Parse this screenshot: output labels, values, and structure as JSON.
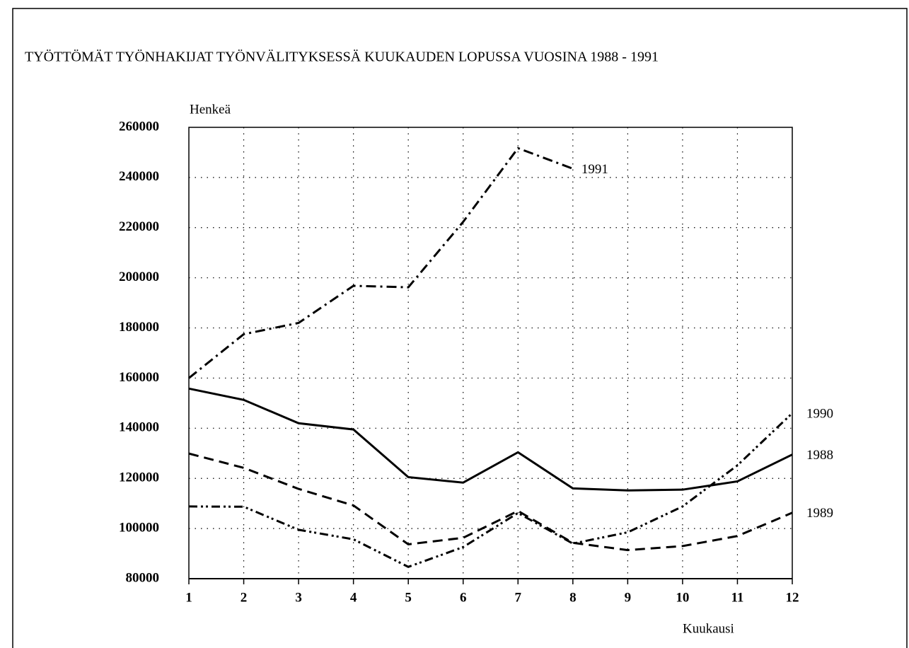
{
  "chart_data": {
    "type": "line",
    "title": "TYÖTTÖMÄT TYÖNHAKIJAT TYÖNVÄLITYKSESSÄ KUUKAUDEN LOPUSSA VUOSINA 1988 - 1991",
    "y_label": "Henkeä",
    "x_label": "Kuukausi",
    "x": [
      1,
      2,
      3,
      4,
      5,
      6,
      7,
      8,
      9,
      10,
      11,
      12
    ],
    "xlim": [
      1,
      12
    ],
    "xticks": [
      1,
      2,
      3,
      4,
      5,
      6,
      7,
      8,
      9,
      10,
      11,
      12
    ],
    "ylim": [
      80000,
      260000
    ],
    "yticks": [
      80000,
      100000,
      120000,
      140000,
      160000,
      180000,
      200000,
      220000,
      240000,
      260000
    ],
    "grid": true,
    "series": [
      {
        "name": "1988",
        "color": "#000000",
        "dash": "solid",
        "values": [
          155800,
          151300,
          142000,
          139500,
          120500,
          118300,
          130400,
          116000,
          115200,
          115500,
          118800,
          129500
        ]
      },
      {
        "name": "1989",
        "color": "#000000",
        "dash": "dashed",
        "values": [
          129900,
          124200,
          115800,
          109200,
          93700,
          96300,
          107000,
          94300,
          91400,
          93000,
          97000,
          106300
        ]
      },
      {
        "name": "1990",
        "color": "#000000",
        "dash": "dashdotdot",
        "values": [
          108800,
          108700,
          99500,
          95700,
          84700,
          92600,
          106200,
          94000,
          98500,
          108800,
          125200,
          146000
        ]
      },
      {
        "name": "1991",
        "color": "#000000",
        "dash": "dashdot",
        "values": [
          160000,
          177500,
          182000,
          196800,
          196200,
          222300,
          251700,
          243500,
          null,
          null,
          null,
          null
        ]
      }
    ]
  }
}
